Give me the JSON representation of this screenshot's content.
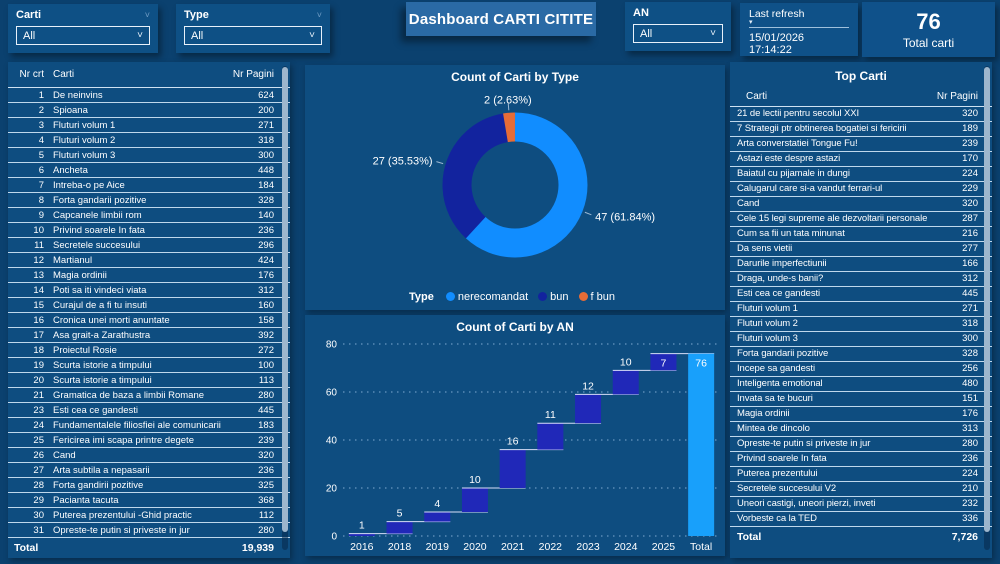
{
  "topbar": {
    "slicers": [
      {
        "label": "Carti",
        "value": "All"
      },
      {
        "label": "Type",
        "value": "All"
      },
      {
        "label": "AN",
        "value": "All"
      }
    ],
    "title": "Dashboard CARTI CITITE",
    "last_refresh": {
      "label": "Last refresh",
      "value": "15/01/2026 17:14:22"
    },
    "total_card": {
      "value": "76",
      "label": "Total carti"
    }
  },
  "left_table": {
    "columns": {
      "nr": "Nr crt",
      "title": "Carti",
      "pages": "Nr Pagini"
    },
    "rows": [
      [
        1,
        "De neinvins",
        624
      ],
      [
        2,
        "Spioana",
        200
      ],
      [
        3,
        "Fluturi volum 1",
        271
      ],
      [
        4,
        "Fluturi volum 2",
        318
      ],
      [
        5,
        "Fluturi volum 3",
        300
      ],
      [
        6,
        "Ancheta",
        448
      ],
      [
        7,
        "Intreba-o pe Aice",
        184
      ],
      [
        8,
        "Forta gandarii pozitive",
        328
      ],
      [
        9,
        "Capcanele limbii rom",
        140
      ],
      [
        10,
        "Privind soarele In fata",
        236
      ],
      [
        11,
        "Secretele succesului",
        296
      ],
      [
        12,
        "Martianul",
        424
      ],
      [
        13,
        "Magia ordinii",
        176
      ],
      [
        14,
        "Poti sa iti vindeci viata",
        312
      ],
      [
        15,
        "Curajul de a fi tu insuti",
        160
      ],
      [
        16,
        "Cronica unei morti anuntate",
        158
      ],
      [
        17,
        "Asa grait-a Zarathustra",
        392
      ],
      [
        18,
        "Proiectul Rosie",
        272
      ],
      [
        19,
        "Scurta istorie a timpului",
        100
      ],
      [
        20,
        "Scurta istorie a timpului",
        113
      ],
      [
        21,
        "Gramatica de baza a limbii Romane",
        280
      ],
      [
        23,
        "Esti cea ce gandesti",
        445
      ],
      [
        24,
        "Fundamentalele filiosfiei ale comunicarii",
        183
      ],
      [
        25,
        "Fericirea imi scapa printre degete",
        239
      ],
      [
        26,
        "Cand",
        320
      ],
      [
        27,
        "Arta subtila a nepasarii",
        236
      ],
      [
        28,
        "Forta gandirii pozitive",
        325
      ],
      [
        29,
        "Pacianta tacuta",
        368
      ],
      [
        30,
        "Puterea prezentului -Ghid practic",
        112
      ],
      [
        31,
        "Opreste-te putin si priveste in jur",
        280
      ]
    ],
    "total_label": "Total",
    "total_value": "19,939"
  },
  "right_table": {
    "title": "Top Carti",
    "columns": {
      "title": "Carti",
      "pages": "Nr Pagini"
    },
    "rows": [
      [
        "21 de lectii pentru secolul XXI",
        320
      ],
      [
        "7 Strategii ptr obtinerea bogatiei si fericirii",
        189
      ],
      [
        "Arta converstatiei Tongue Fu!",
        239
      ],
      [
        "Astazi este despre astazi",
        170
      ],
      [
        "Baiatul cu pijamale in dungi",
        224
      ],
      [
        "Calugarul care si-a vandut ferrari-ul",
        229
      ],
      [
        "Cand",
        320
      ],
      [
        "Cele 15 legi supreme ale dezvoltarii personale",
        287
      ],
      [
        "Cum sa fii un tata minunat",
        216
      ],
      [
        "Da sens vietii",
        277
      ],
      [
        "Darurile imperfectiunii",
        166
      ],
      [
        "Draga, unde-s banii?",
        312
      ],
      [
        "Esti cea ce gandesti",
        445
      ],
      [
        "Fluturi volum 1",
        271
      ],
      [
        "Fluturi volum 2",
        318
      ],
      [
        "Fluturi volum 3",
        300
      ],
      [
        "Forta gandarii pozitive",
        328
      ],
      [
        "Incepe sa gandesti",
        256
      ],
      [
        "Inteligenta emotional",
        480
      ],
      [
        "Invata sa te bucuri",
        151
      ],
      [
        "Magia ordinii",
        176
      ],
      [
        "Mintea de dincolo",
        313
      ],
      [
        "Opreste-te putin si priveste in jur",
        280
      ],
      [
        "Privind soarele In fata",
        236
      ],
      [
        "Puterea prezentului",
        224
      ],
      [
        "Secretele succesului V2",
        210
      ],
      [
        "Uneori castigi, uneori pierzi, inveti",
        232
      ],
      [
        "Vorbeste ca la TED",
        336
      ]
    ],
    "total_label": "Total",
    "total_value": "7,726"
  },
  "chart_data": [
    {
      "type": "pie",
      "subtype": "donut",
      "title": "Count of Carti by Type",
      "legend_title": "Type",
      "legend_position": "bottom",
      "labels": [
        "nerecomandat",
        "bun",
        "f bun"
      ],
      "values": [
        47,
        27,
        2
      ],
      "percents": [
        "61.84%",
        "35.53%",
        "2.63%"
      ],
      "colors": [
        "#118DFF",
        "#12239E",
        "#E66C37"
      ]
    },
    {
      "type": "bar",
      "subtype": "waterfall",
      "title": "Count of Carti by AN",
      "categories": [
        "2016",
        "2018",
        "2019",
        "2020",
        "2021",
        "2022",
        "2023",
        "2024",
        "2025",
        "Total"
      ],
      "values": [
        1,
        5,
        4,
        10,
        16,
        11,
        12,
        10,
        7,
        76
      ],
      "total_index": 9,
      "ylim": [
        0,
        80
      ],
      "yticks": [
        0,
        20,
        40,
        60,
        80
      ],
      "grid": "dotted",
      "bar_color": "#2028B8",
      "total_color": "#18A0FB",
      "connector_color": "#D8DEF8"
    }
  ]
}
